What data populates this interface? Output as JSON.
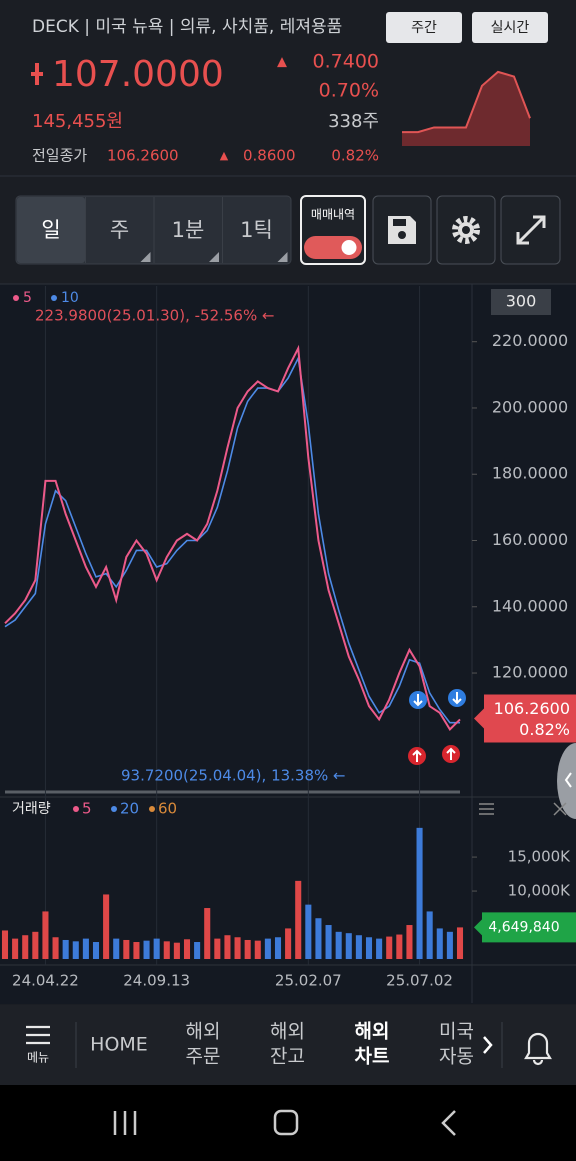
{
  "header": {
    "title": "DECK | 미국 뉴욕 | 의류, 사치품, 레져용품",
    "buttons": [
      "주간",
      "실시간"
    ],
    "price": "107.0000",
    "change_arrow": "▲",
    "change": "0.7400",
    "change_rate": "0.70%",
    "krw_price": "145,455원",
    "volume": "338주",
    "prev_close_label": "전일종가",
    "prev_close": "106.2600",
    "prev_change_arrow": "▲",
    "prev_change": "0.8600",
    "prev_change_rate": "0.82%"
  },
  "mini_chart": {
    "values": [
      105.9,
      105.9,
      106.0,
      106.0,
      106.0,
      106.9,
      107.2,
      107.1,
      106.2
    ],
    "ylim": [
      105.6,
      107.5
    ],
    "color": "#e05555"
  },
  "toolbar": {
    "periods": [
      "일",
      "주",
      "1분",
      "1틱"
    ],
    "trade_history": "매매내역"
  },
  "chart_data": [
    {
      "type": "line",
      "visible_bars": 300,
      "categories": [
        null,
        null,
        null,
        null,
        "24.04.22",
        null,
        null,
        null,
        null,
        null,
        null,
        null,
        null,
        null,
        null,
        "24.09.13",
        null,
        null,
        null,
        null,
        null,
        null,
        null,
        null,
        null,
        null,
        null,
        null,
        null,
        null,
        "25.02.07",
        null,
        null,
        null,
        null,
        null,
        null,
        null,
        null,
        null,
        null,
        "25.07.02",
        null,
        null,
        null,
        null
      ],
      "series": [
        {
          "name": "5",
          "color": "#ec5a8a",
          "values": [
            135,
            138,
            142,
            148,
            178,
            178,
            168,
            160,
            152,
            146,
            152,
            142,
            155,
            160,
            156,
            148,
            155,
            160,
            162,
            160,
            165,
            175,
            188,
            200,
            205,
            208,
            206,
            205,
            212,
            218,
            185,
            160,
            145,
            135,
            125,
            118,
            110,
            106,
            112,
            120,
            127,
            122,
            110,
            108,
            103,
            106
          ]
        },
        {
          "name": "10",
          "color": "#4d8ae6",
          "values": [
            134,
            136,
            140,
            144,
            165,
            175,
            172,
            164,
            156,
            149,
            150,
            146,
            151,
            157,
            157,
            152,
            153,
            157,
            160,
            160,
            163,
            170,
            181,
            194,
            202,
            206,
            206,
            205,
            209,
            215,
            195,
            168,
            150,
            139,
            129,
            121,
            113,
            108,
            110,
            116,
            124,
            123,
            114,
            109,
            105,
            105
          ]
        }
      ],
      "ylim": [
        85,
        235
      ],
      "yticks": [
        {
          "value": 120,
          "label": "120.0000"
        },
        {
          "value": 140,
          "label": "140.0000"
        },
        {
          "value": 160,
          "label": "160.0000"
        },
        {
          "value": 180,
          "label": "180.0000"
        },
        {
          "value": 200,
          "label": "200.0000"
        },
        {
          "value": 220,
          "label": "220.0000"
        }
      ],
      "annotations": [
        {
          "text": "223.9800(25.01.30), -52.56% ←",
          "color": "#e0505a"
        },
        {
          "text": "93.7200(25.04.04), 13.38% ←",
          "color": "#4d8ae6"
        }
      ],
      "current": {
        "value": 106.26,
        "label": "106.2600"
      },
      "current_change": "0.82%",
      "current_color": "#e0484f",
      "grid": "x"
    },
    {
      "type": "bar",
      "title": "거래량",
      "legend": [
        {
          "name": "5",
          "color": "#ec5a8a"
        },
        {
          "name": "20",
          "color": "#4d8ae6"
        },
        {
          "name": "60",
          "color": "#d98a3a"
        }
      ],
      "values": [
        4200000,
        3000000,
        3500000,
        4000000,
        7000000,
        3200000,
        2800000,
        2600000,
        3000000,
        2500000,
        9500000,
        3000000,
        2800000,
        2500000,
        2700000,
        3000000,
        2600000,
        2400000,
        2900000,
        2500000,
        7500000,
        3000000,
        3500000,
        3200000,
        2800000,
        2700000,
        3000000,
        3200000,
        4500000,
        11500000,
        8000000,
        6000000,
        5000000,
        4000000,
        3800000,
        3500000,
        3200000,
        3000000,
        3300000,
        3600000,
        5000000,
        19300000,
        7000000,
        4500000,
        4000000,
        4649840
      ],
      "ylim": [
        0,
        23400000
      ],
      "yticks": [
        {
          "value": 10000000,
          "label": "10,000K"
        },
        {
          "value": 15000000,
          "label": "15,000K"
        }
      ],
      "up_color": "#e04848",
      "down_color": "#3d7bd9",
      "current": {
        "value": 4649840,
        "label": "4,649,840"
      },
      "current_color": "#1fa447"
    }
  ],
  "nav": {
    "menu": "메뉴",
    "home": "HOME",
    "items": [
      [
        "해외",
        "주문"
      ],
      [
        "해외",
        "잔고"
      ],
      [
        "해외",
        "차트"
      ],
      [
        "미국",
        "자동"
      ]
    ]
  }
}
